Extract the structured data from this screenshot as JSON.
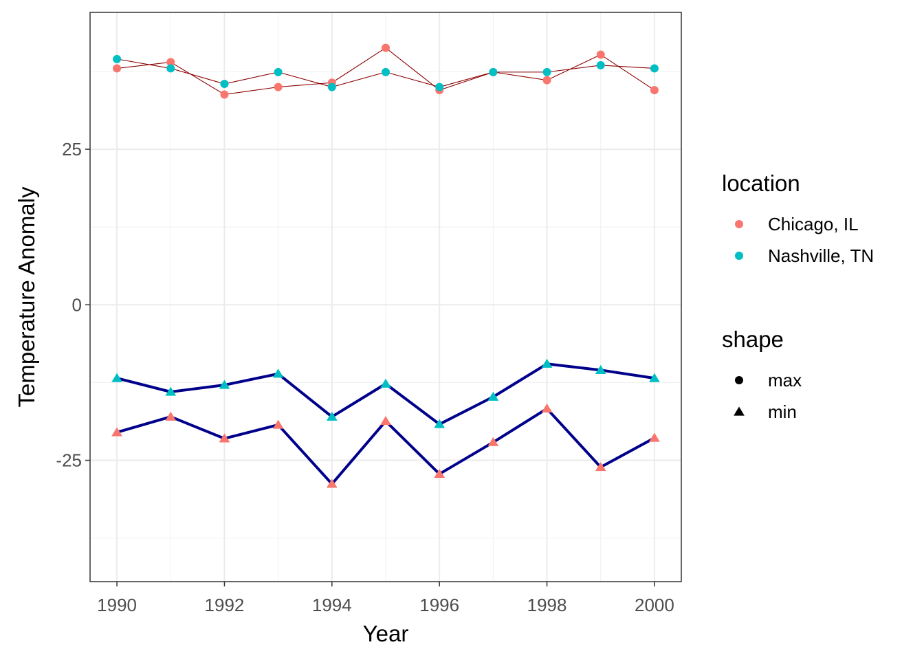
{
  "chart_data": {
    "type": "line",
    "xlabel": "Year",
    "ylabel": "Temperature Anomaly",
    "x": [
      1990,
      1991,
      1992,
      1993,
      1994,
      1995,
      1996,
      1997,
      1998,
      1999,
      2000
    ],
    "xlim": [
      1989.5,
      2000.5
    ],
    "ylim": [
      -44.5,
      47
    ],
    "x_ticks": [
      1990,
      1992,
      1994,
      1996,
      1998,
      2000
    ],
    "x_tick_labels": [
      "1990",
      "1992",
      "1994",
      "1996",
      "1998",
      "2000"
    ],
    "y_ticks": [
      -25,
      0,
      25
    ],
    "y_tick_labels": [
      "-25",
      "0",
      "25"
    ],
    "grid": true,
    "legend_position": "right",
    "series": [
      {
        "location": "Chicago, IL",
        "shape": "max",
        "color": "#F8766D",
        "line_color": "#8B0000",
        "values": [
          38,
          39,
          33.8,
          35,
          35.7,
          41.3,
          34.5,
          37.4,
          36.1,
          40.2,
          34.5
        ]
      },
      {
        "location": "Nashville, TN",
        "shape": "max",
        "color": "#00BFC4",
        "line_color": "#8B0000",
        "values": [
          39.5,
          38,
          35.5,
          37.4,
          35,
          37.4,
          35,
          37.4,
          37.4,
          38.5,
          38
        ]
      },
      {
        "location": "Chicago, IL",
        "shape": "min",
        "color": "#F8766D",
        "line_color": "#00008B",
        "values": [
          -20.5,
          -18,
          -21.5,
          -19.3,
          -28.8,
          -18.7,
          -27.2,
          -22.1,
          -16.7,
          -26.1,
          -21.4
        ]
      },
      {
        "location": "Nashville, TN",
        "shape": "min",
        "color": "#00BFC4",
        "line_color": "#00008B",
        "values": [
          -11.8,
          -14,
          -12.9,
          -11.1,
          -18,
          -12.7,
          -19.2,
          -14.8,
          -9.5,
          -10.5,
          -11.8
        ]
      }
    ],
    "legends": [
      {
        "title": "location",
        "items": [
          {
            "label": "Chicago, IL",
            "color": "#F8766D",
            "symbol": "circle"
          },
          {
            "label": "Nashville, TN",
            "color": "#00BFC4",
            "symbol": "circle"
          }
        ]
      },
      {
        "title": "shape",
        "items": [
          {
            "label": "max",
            "color": "#000000",
            "symbol": "circle"
          },
          {
            "label": "min",
            "color": "#000000",
            "symbol": "triangle"
          }
        ]
      }
    ]
  }
}
